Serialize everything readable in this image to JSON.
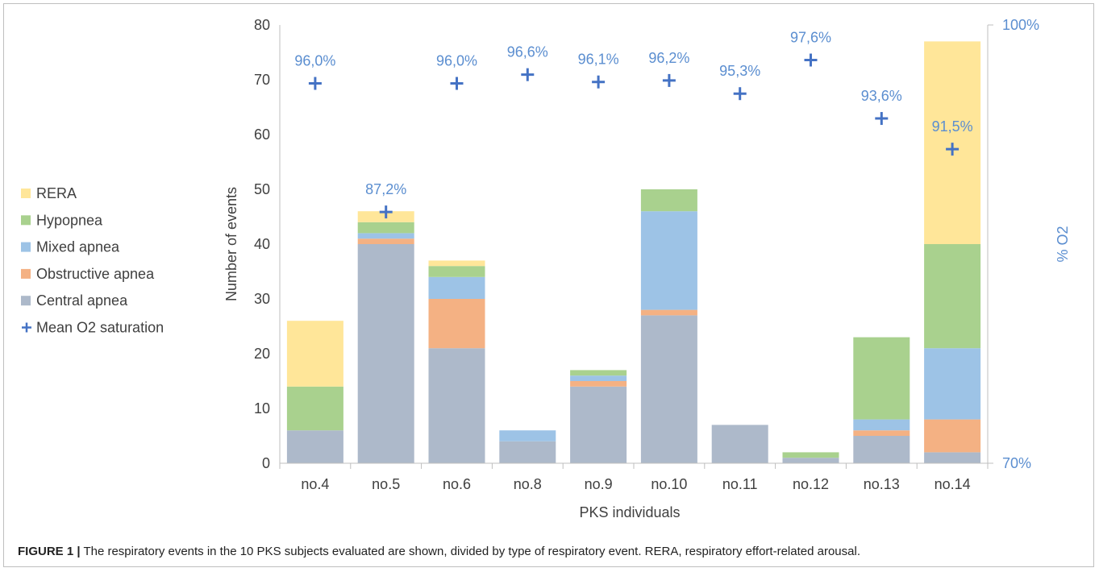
{
  "caption": {
    "label": "FIGURE 1 |",
    "text": " The respiratory events in the 10 PKS subjects evaluated are shown, divided by type of respiratory event. RERA, respiratory effort-related arousal."
  },
  "chart_data": {
    "type": "bar",
    "stacked": true,
    "categories": [
      "no.4",
      "no.5",
      "no.6",
      "no.8",
      "no.9",
      "no.10",
      "no.11",
      "no.12",
      "no.13",
      "no.14"
    ],
    "xlabel": "PKS individuals",
    "ylabel": "Number of events",
    "ylim": [
      0,
      80
    ],
    "yticks": [
      0,
      10,
      20,
      30,
      40,
      50,
      60,
      70,
      80
    ],
    "y2label": "% O2",
    "y2lim": [
      70,
      100
    ],
    "y2ticks": [
      {
        "value": 70,
        "label": "70%"
      },
      {
        "value": 100,
        "label": "100%"
      }
    ],
    "legend_position": "left",
    "grid": false,
    "series": [
      {
        "name": "Central apnea",
        "color": "#adb9ca",
        "values": [
          6,
          40,
          21,
          4,
          14,
          27,
          7,
          1,
          5,
          2
        ]
      },
      {
        "name": "Obstructive apnea",
        "color": "#f4b183",
        "values": [
          0,
          1,
          9,
          0,
          1,
          1,
          0,
          0,
          1,
          6
        ]
      },
      {
        "name": "Mixed apnea",
        "color": "#9dc3e6",
        "values": [
          0,
          1,
          4,
          2,
          1,
          18,
          0,
          0,
          2,
          13
        ]
      },
      {
        "name": "Hypopnea",
        "color": "#a9d18e",
        "values": [
          8,
          2,
          2,
          0,
          1,
          4,
          0,
          1,
          15,
          19
        ]
      },
      {
        "name": "RERA",
        "color": "#ffe699",
        "values": [
          12,
          2,
          1,
          0,
          0,
          0,
          0,
          0,
          0,
          37
        ]
      }
    ],
    "legend_order": [
      "RERA",
      "Hypopnea",
      "Mixed apnea",
      "Obstructive apnea",
      "Central apnea",
      "Mean O2 saturation"
    ],
    "o2": {
      "name": "Mean O2 saturation",
      "color": "#4472c4",
      "label_color": "#5b8ed0",
      "values": [
        96.0,
        87.2,
        96.0,
        96.6,
        96.1,
        96.2,
        95.3,
        97.6,
        93.6,
        91.5
      ],
      "labels": [
        "96,0%",
        "87,2%",
        "96,0%",
        "96,6%",
        "96,1%",
        "96,2%",
        "95,3%",
        "97,6%",
        "93,6%",
        "91,5%"
      ]
    }
  }
}
